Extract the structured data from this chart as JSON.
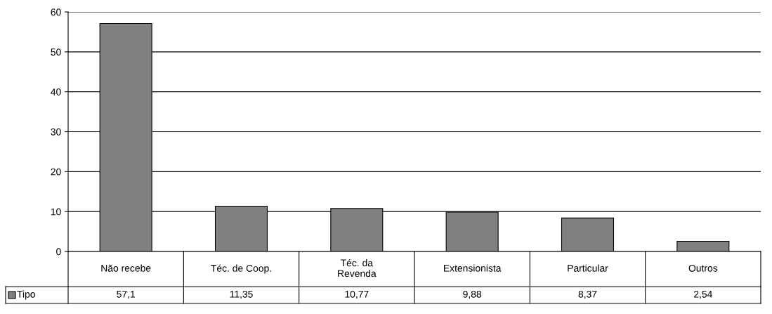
{
  "chart_data": {
    "type": "bar",
    "categories": [
      "Não recebe",
      "Téc. de Coop.",
      "Téc. da\nRevenda",
      "Extensionista",
      "Particular",
      "Outros"
    ],
    "series": [
      {
        "name": "Tipo",
        "color": "#808080",
        "values": [
          57.1,
          11.35,
          10.77,
          9.88,
          8.37,
          2.54
        ],
        "value_labels": [
          "57,1",
          "11,35",
          "10,77",
          "9,88",
          "8,37",
          "2,54"
        ]
      }
    ],
    "ylim": [
      0,
      60
    ],
    "yticks": [
      0,
      10,
      20,
      30,
      40,
      50,
      60
    ],
    "grid": "y",
    "legend": "bottom left",
    "tick_labels": "y"
  }
}
